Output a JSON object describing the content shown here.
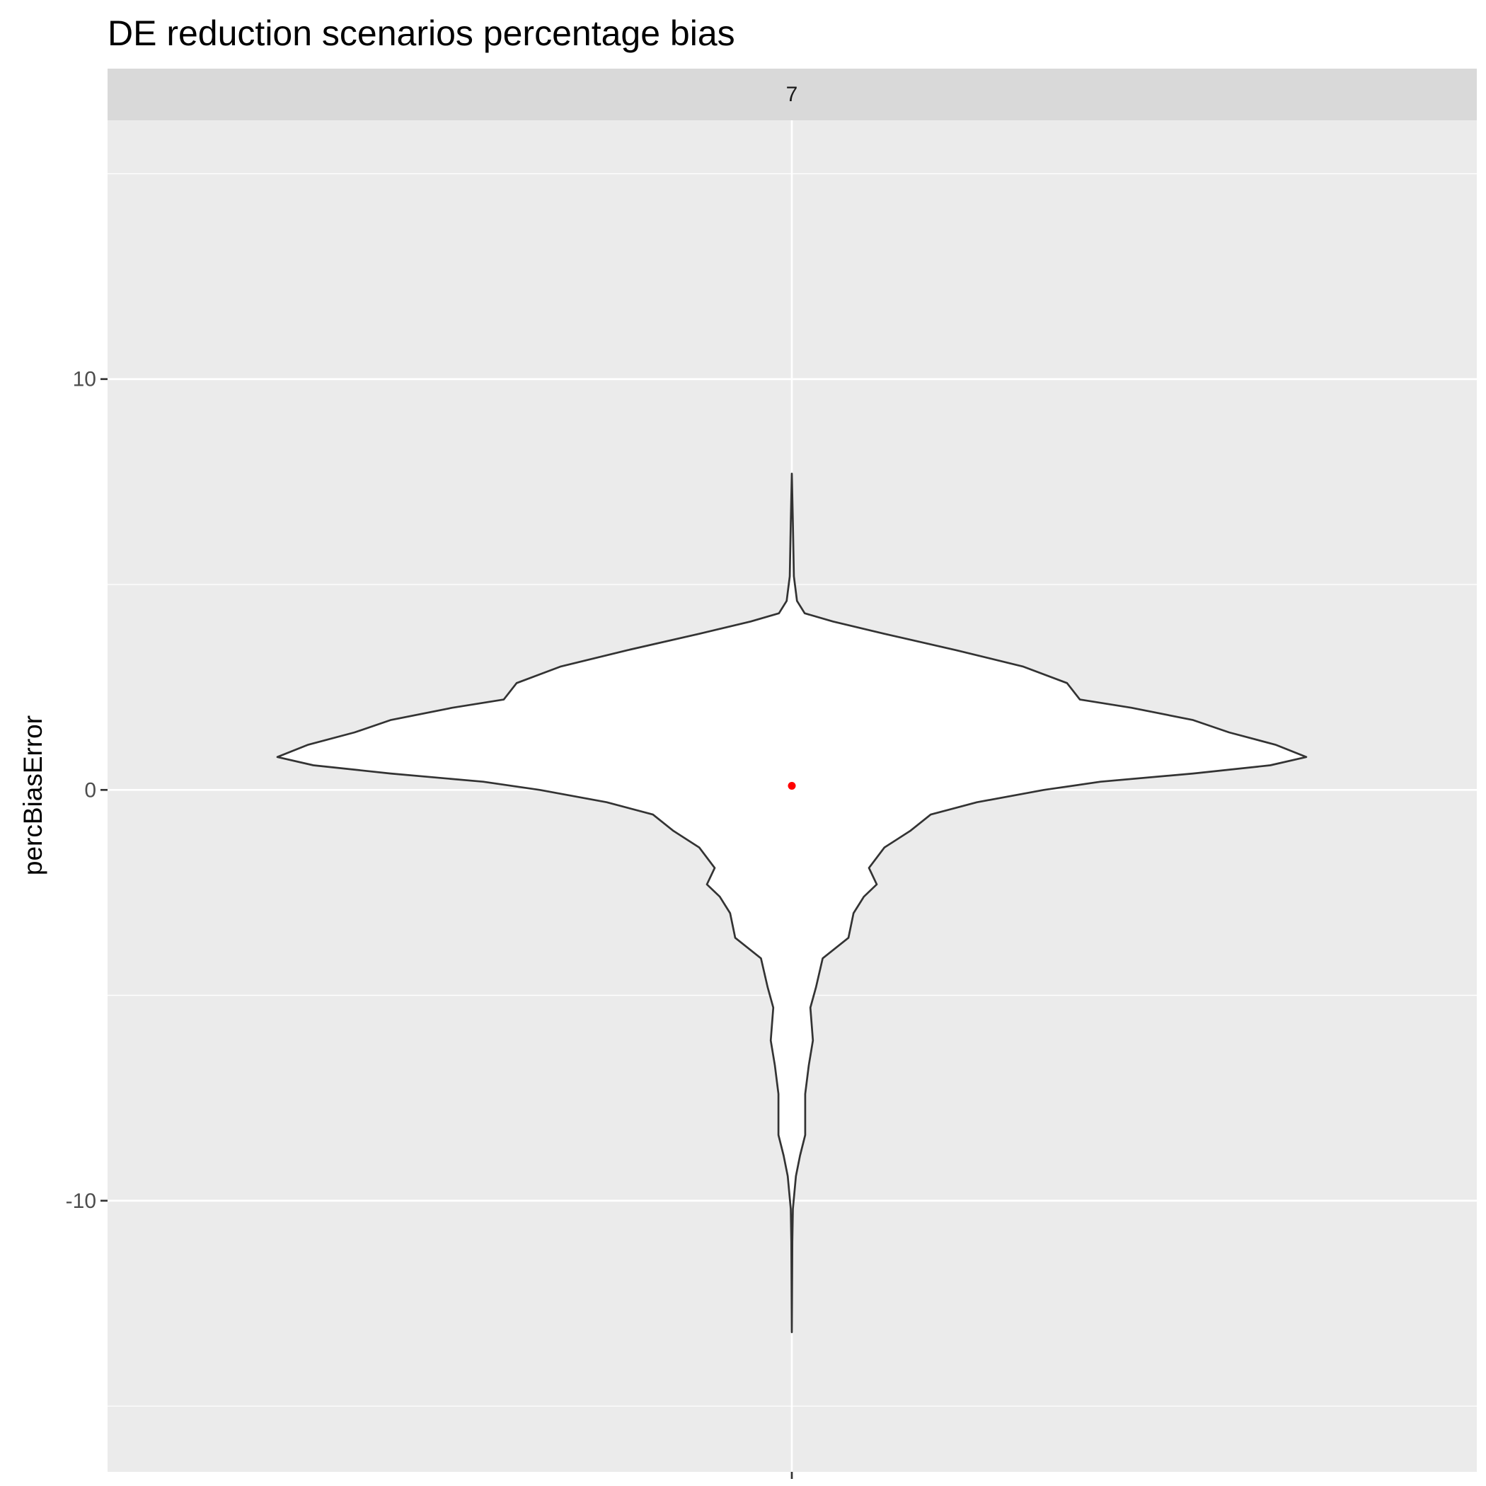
{
  "chart_data": {
    "type": "violin",
    "title": "DE reduction scenarios percentage bias",
    "xlabel": "",
    "ylabel": "percBiasError",
    "facet_label": "7",
    "ylim": [
      -16.6,
      16.3
    ],
    "y_ticks": [
      -10,
      0,
      10
    ],
    "y_tick_labels": [
      "-10",
      "0",
      "10"
    ],
    "y_minor_gridlines": [
      -15,
      -5,
      5,
      15
    ],
    "grid": true,
    "background_color": "#ebebeb",
    "strip_color": "#d9d9d9",
    "violin_fill": "#ffffff",
    "violin_outline": "#333333",
    "mean_point": {
      "y": 0.1,
      "color": "#ff0000"
    },
    "violin_half_width_max": 1.0,
    "density_profile": [
      {
        "y": 7.7,
        "w": 0.0
      },
      {
        "y": 6.5,
        "w": 0.002
      },
      {
        "y": 5.2,
        "w": 0.004
      },
      {
        "y": 4.6,
        "w": 0.01
      },
      {
        "y": 4.3,
        "w": 0.025
      },
      {
        "y": 4.1,
        "w": 0.08
      },
      {
        "y": 3.8,
        "w": 0.18
      },
      {
        "y": 3.4,
        "w": 0.32
      },
      {
        "y": 3.0,
        "w": 0.45
      },
      {
        "y": 2.6,
        "w": 0.535
      },
      {
        "y": 2.2,
        "w": 0.56
      },
      {
        "y": 2.0,
        "w": 0.66
      },
      {
        "y": 1.7,
        "w": 0.78
      },
      {
        "y": 1.4,
        "w": 0.85
      },
      {
        "y": 1.1,
        "w": 0.94
      },
      {
        "y": 0.8,
        "w": 1.0
      },
      {
        "y": 0.6,
        "w": 0.93
      },
      {
        "y": 0.4,
        "w": 0.78
      },
      {
        "y": 0.2,
        "w": 0.6
      },
      {
        "y": 0.0,
        "w": 0.49
      },
      {
        "y": -0.3,
        "w": 0.36
      },
      {
        "y": -0.6,
        "w": 0.27
      },
      {
        "y": -1.0,
        "w": 0.23
      },
      {
        "y": -1.4,
        "w": 0.18
      },
      {
        "y": -1.9,
        "w": 0.15
      },
      {
        "y": -2.3,
        "w": 0.165
      },
      {
        "y": -2.6,
        "w": 0.14
      },
      {
        "y": -3.0,
        "w": 0.12
      },
      {
        "y": -3.6,
        "w": 0.11
      },
      {
        "y": -4.1,
        "w": 0.06
      },
      {
        "y": -4.8,
        "w": 0.047
      },
      {
        "y": -5.3,
        "w": 0.036
      },
      {
        "y": -6.1,
        "w": 0.041
      },
      {
        "y": -6.7,
        "w": 0.033
      },
      {
        "y": -7.4,
        "w": 0.026
      },
      {
        "y": -8.4,
        "w": 0.026
      },
      {
        "y": -8.9,
        "w": 0.016
      },
      {
        "y": -9.4,
        "w": 0.008
      },
      {
        "y": -10.2,
        "w": 0.002
      },
      {
        "y": -11.0,
        "w": 0.001
      },
      {
        "y": -13.2,
        "w": 0.0
      }
    ]
  }
}
